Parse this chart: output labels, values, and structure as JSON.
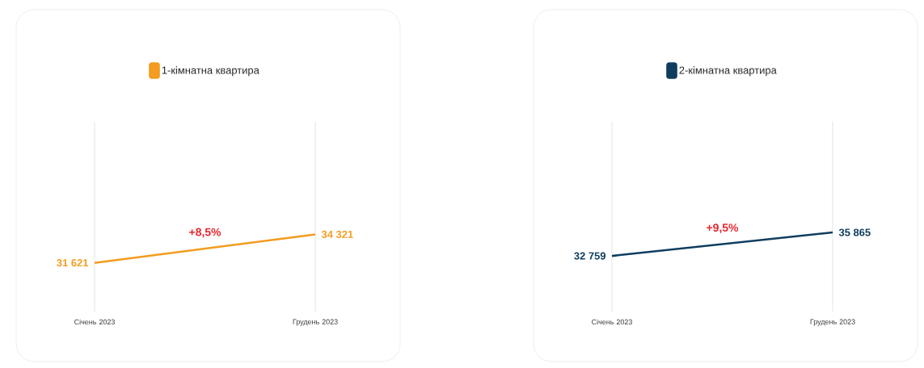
{
  "chart_data": [
    {
      "type": "line",
      "categories": [
        "Січень 2023",
        "Грудень 2023"
      ],
      "ylim": [
        27000,
        45000
      ],
      "grid": "x",
      "legend": "top",
      "marker": "none",
      "line_style": "solid",
      "series": [
        {
          "name": "1-кімнатна квартира",
          "color": "#f39c1f",
          "values": [
            31621,
            34321
          ],
          "value_labels": [
            "31 621",
            "34 321"
          ]
        }
      ],
      "annotations": [
        "+8,5%"
      ]
    },
    {
      "type": "line",
      "categories": [
        "Січень 2023",
        "Грудень 2023"
      ],
      "ylim": [
        25400,
        50500
      ],
      "grid": "x",
      "legend": "top",
      "marker": "none",
      "line_style": "solid",
      "series": [
        {
          "name": "2-кімнатна квартира",
          "color": "#0f3d5e",
          "values": [
            32759,
            35865
          ],
          "value_labels": [
            "32 759",
            "35 865"
          ]
        }
      ],
      "annotations": [
        "+9,5%"
      ]
    }
  ]
}
